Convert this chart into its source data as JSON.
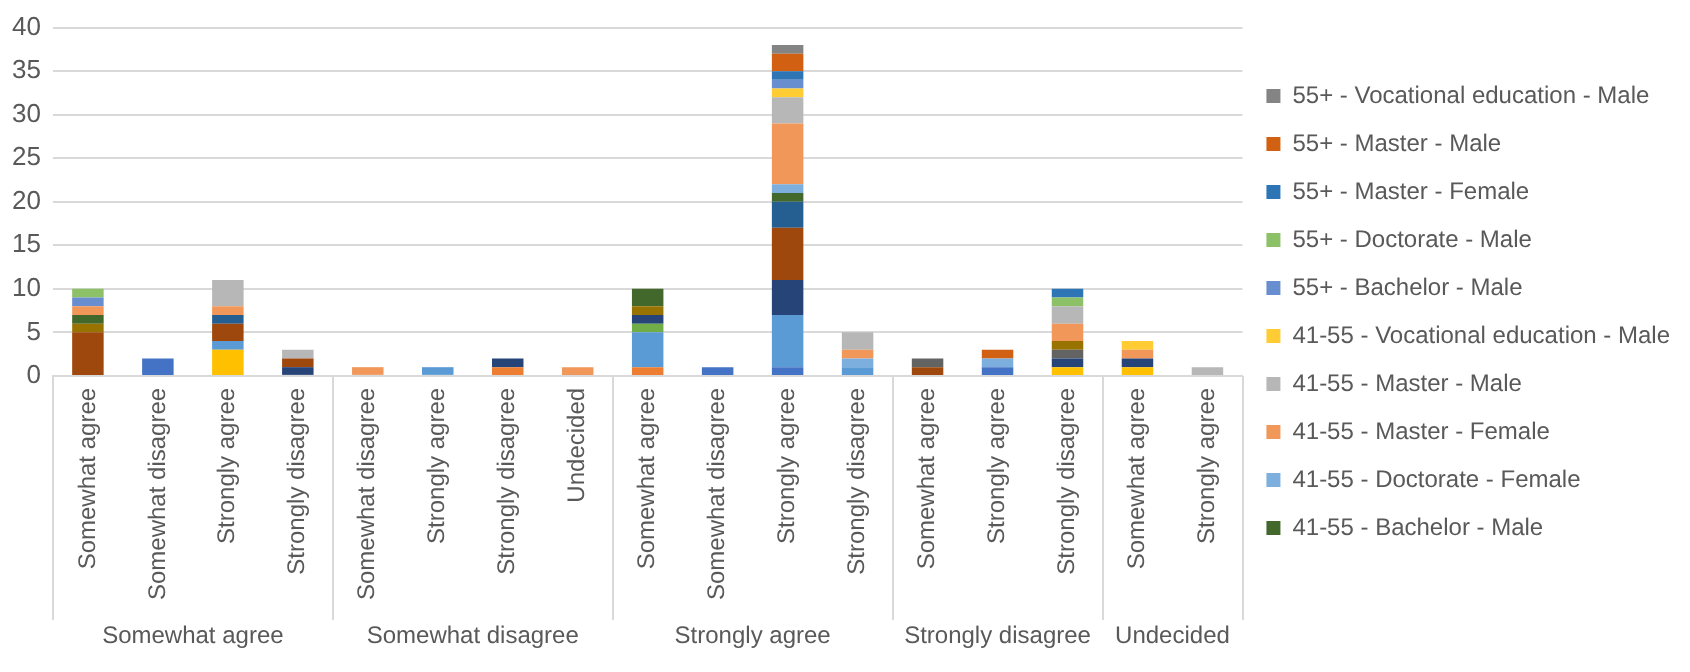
{
  "chart_data": {
    "type": "bar",
    "stacked": true,
    "grid": "y",
    "legend": "right",
    "categories": [
      "Somewhat agree",
      "Somewhat disagree",
      "Strongly agree",
      "Strongly disagree",
      "Somewhat disagree",
      "Strongly agree",
      "Strongly disagree",
      "Undecided",
      "Somewhat agree",
      "Somewhat disagree",
      "Strongly agree",
      "Strongly disagree",
      "Somewhat agree",
      "Strongly agree",
      "Strongly disagree",
      "Somewhat agree",
      "Strongly agree"
    ],
    "annotations": [
      "Somewhat agree",
      "Somewhat disagree",
      "Strongly agree",
      "Strongly disagree",
      "Undecided"
    ],
    "ylim": [
      0,
      40
    ],
    "yticks": [
      0,
      5,
      10,
      15,
      20,
      25,
      30,
      35,
      40
    ],
    "series": [
      {
        "color": "#4472c4",
        "values": [
          null,
          2,
          null,
          null,
          null,
          null,
          null,
          null,
          null,
          1,
          1,
          null,
          null,
          1,
          null,
          null,
          null
        ]
      },
      {
        "color": "#ed7d31",
        "values": [
          null,
          null,
          null,
          null,
          null,
          null,
          1,
          null,
          1,
          null,
          null,
          null,
          null,
          null,
          null,
          null,
          null
        ]
      },
      {
        "color": "#a5a5a5",
        "values": [
          null,
          null,
          null,
          null,
          null,
          null,
          null,
          null,
          null,
          null,
          null,
          null,
          null,
          null,
          null,
          null,
          null
        ]
      },
      {
        "color": "#ffc000",
        "values": [
          null,
          null,
          3,
          null,
          null,
          null,
          null,
          null,
          null,
          null,
          null,
          null,
          null,
          null,
          1,
          1,
          null
        ]
      },
      {
        "color": "#5b9bd5",
        "values": [
          null,
          null,
          1,
          null,
          null,
          1,
          null,
          null,
          4,
          null,
          6,
          1,
          null,
          null,
          null,
          null,
          null
        ]
      },
      {
        "color": "#70ad47",
        "values": [
          null,
          null,
          null,
          null,
          null,
          null,
          null,
          null,
          1,
          null,
          null,
          null,
          null,
          null,
          null,
          null,
          null
        ]
      },
      {
        "color": "#264478",
        "values": [
          null,
          null,
          null,
          1,
          null,
          null,
          1,
          null,
          1,
          null,
          4,
          null,
          null,
          null,
          1,
          1,
          null
        ]
      },
      {
        "color": "#9e480e",
        "values": [
          5,
          null,
          2,
          1,
          null,
          null,
          null,
          null,
          null,
          null,
          6,
          null,
          1,
          null,
          null,
          null,
          null
        ]
      },
      {
        "color": "#636363",
        "values": [
          null,
          null,
          null,
          null,
          null,
          null,
          null,
          null,
          null,
          null,
          null,
          null,
          1,
          null,
          1,
          null,
          null
        ]
      },
      {
        "color": "#997300",
        "values": [
          1,
          null,
          null,
          null,
          null,
          null,
          null,
          null,
          1,
          null,
          null,
          null,
          null,
          null,
          1,
          null,
          null
        ]
      },
      {
        "color": "#255e91",
        "values": [
          null,
          null,
          1,
          null,
          null,
          null,
          null,
          null,
          null,
          null,
          3,
          null,
          null,
          null,
          null,
          null,
          null
        ]
      },
      {
        "name": "41-55 - Bachelor - Male",
        "color": "#43682b",
        "values": [
          1,
          null,
          null,
          null,
          null,
          null,
          null,
          null,
          2,
          null,
          1,
          null,
          null,
          null,
          null,
          null,
          null
        ]
      },
      {
        "name": "41-55 - Doctorate - Female",
        "color": "#7cafdd",
        "values": [
          null,
          null,
          null,
          null,
          null,
          null,
          null,
          null,
          null,
          null,
          1,
          1,
          null,
          1,
          null,
          null,
          null
        ]
      },
      {
        "name": "41-55 - Master - Female",
        "color": "#f1975a",
        "values": [
          1,
          null,
          1,
          null,
          1,
          null,
          null,
          1,
          null,
          null,
          7,
          1,
          null,
          null,
          2,
          1,
          null
        ]
      },
      {
        "name": "41-55 - Master - Male",
        "color": "#b7b7b7",
        "values": [
          null,
          null,
          3,
          1,
          null,
          null,
          null,
          null,
          null,
          null,
          3,
          2,
          null,
          null,
          2,
          null,
          1
        ]
      },
      {
        "name": "41-55 - Vocational education - Male",
        "color": "#ffcd33",
        "values": [
          null,
          null,
          null,
          null,
          null,
          null,
          null,
          null,
          null,
          null,
          1,
          null,
          null,
          null,
          null,
          1,
          null
        ]
      },
      {
        "name": "55+ - Bachelor - Male",
        "color": "#698ed0",
        "values": [
          1,
          null,
          null,
          null,
          null,
          null,
          null,
          null,
          null,
          null,
          1,
          null,
          null,
          null,
          null,
          null,
          null
        ]
      },
      {
        "name": "55+ - Doctorate - Male",
        "color": "#8cc168",
        "values": [
          1,
          null,
          null,
          null,
          null,
          null,
          null,
          null,
          null,
          null,
          null,
          null,
          null,
          null,
          1,
          null,
          null
        ]
      },
      {
        "name": "55+ - Master - Female",
        "color": "#2e75b6",
        "values": [
          null,
          null,
          null,
          null,
          null,
          null,
          null,
          null,
          null,
          null,
          1,
          null,
          null,
          null,
          1,
          null,
          null
        ]
      },
      {
        "name": "55+ - Master - Male",
        "color": "#d26012",
        "values": [
          null,
          null,
          null,
          null,
          null,
          null,
          null,
          null,
          null,
          null,
          2,
          null,
          null,
          1,
          null,
          null,
          null
        ]
      },
      {
        "name": "55+ - Vocational education - Male",
        "color": "#848484",
        "values": [
          null,
          null,
          null,
          null,
          null,
          null,
          null,
          null,
          null,
          null,
          1,
          null,
          null,
          null,
          null,
          null,
          null
        ]
      }
    ]
  }
}
